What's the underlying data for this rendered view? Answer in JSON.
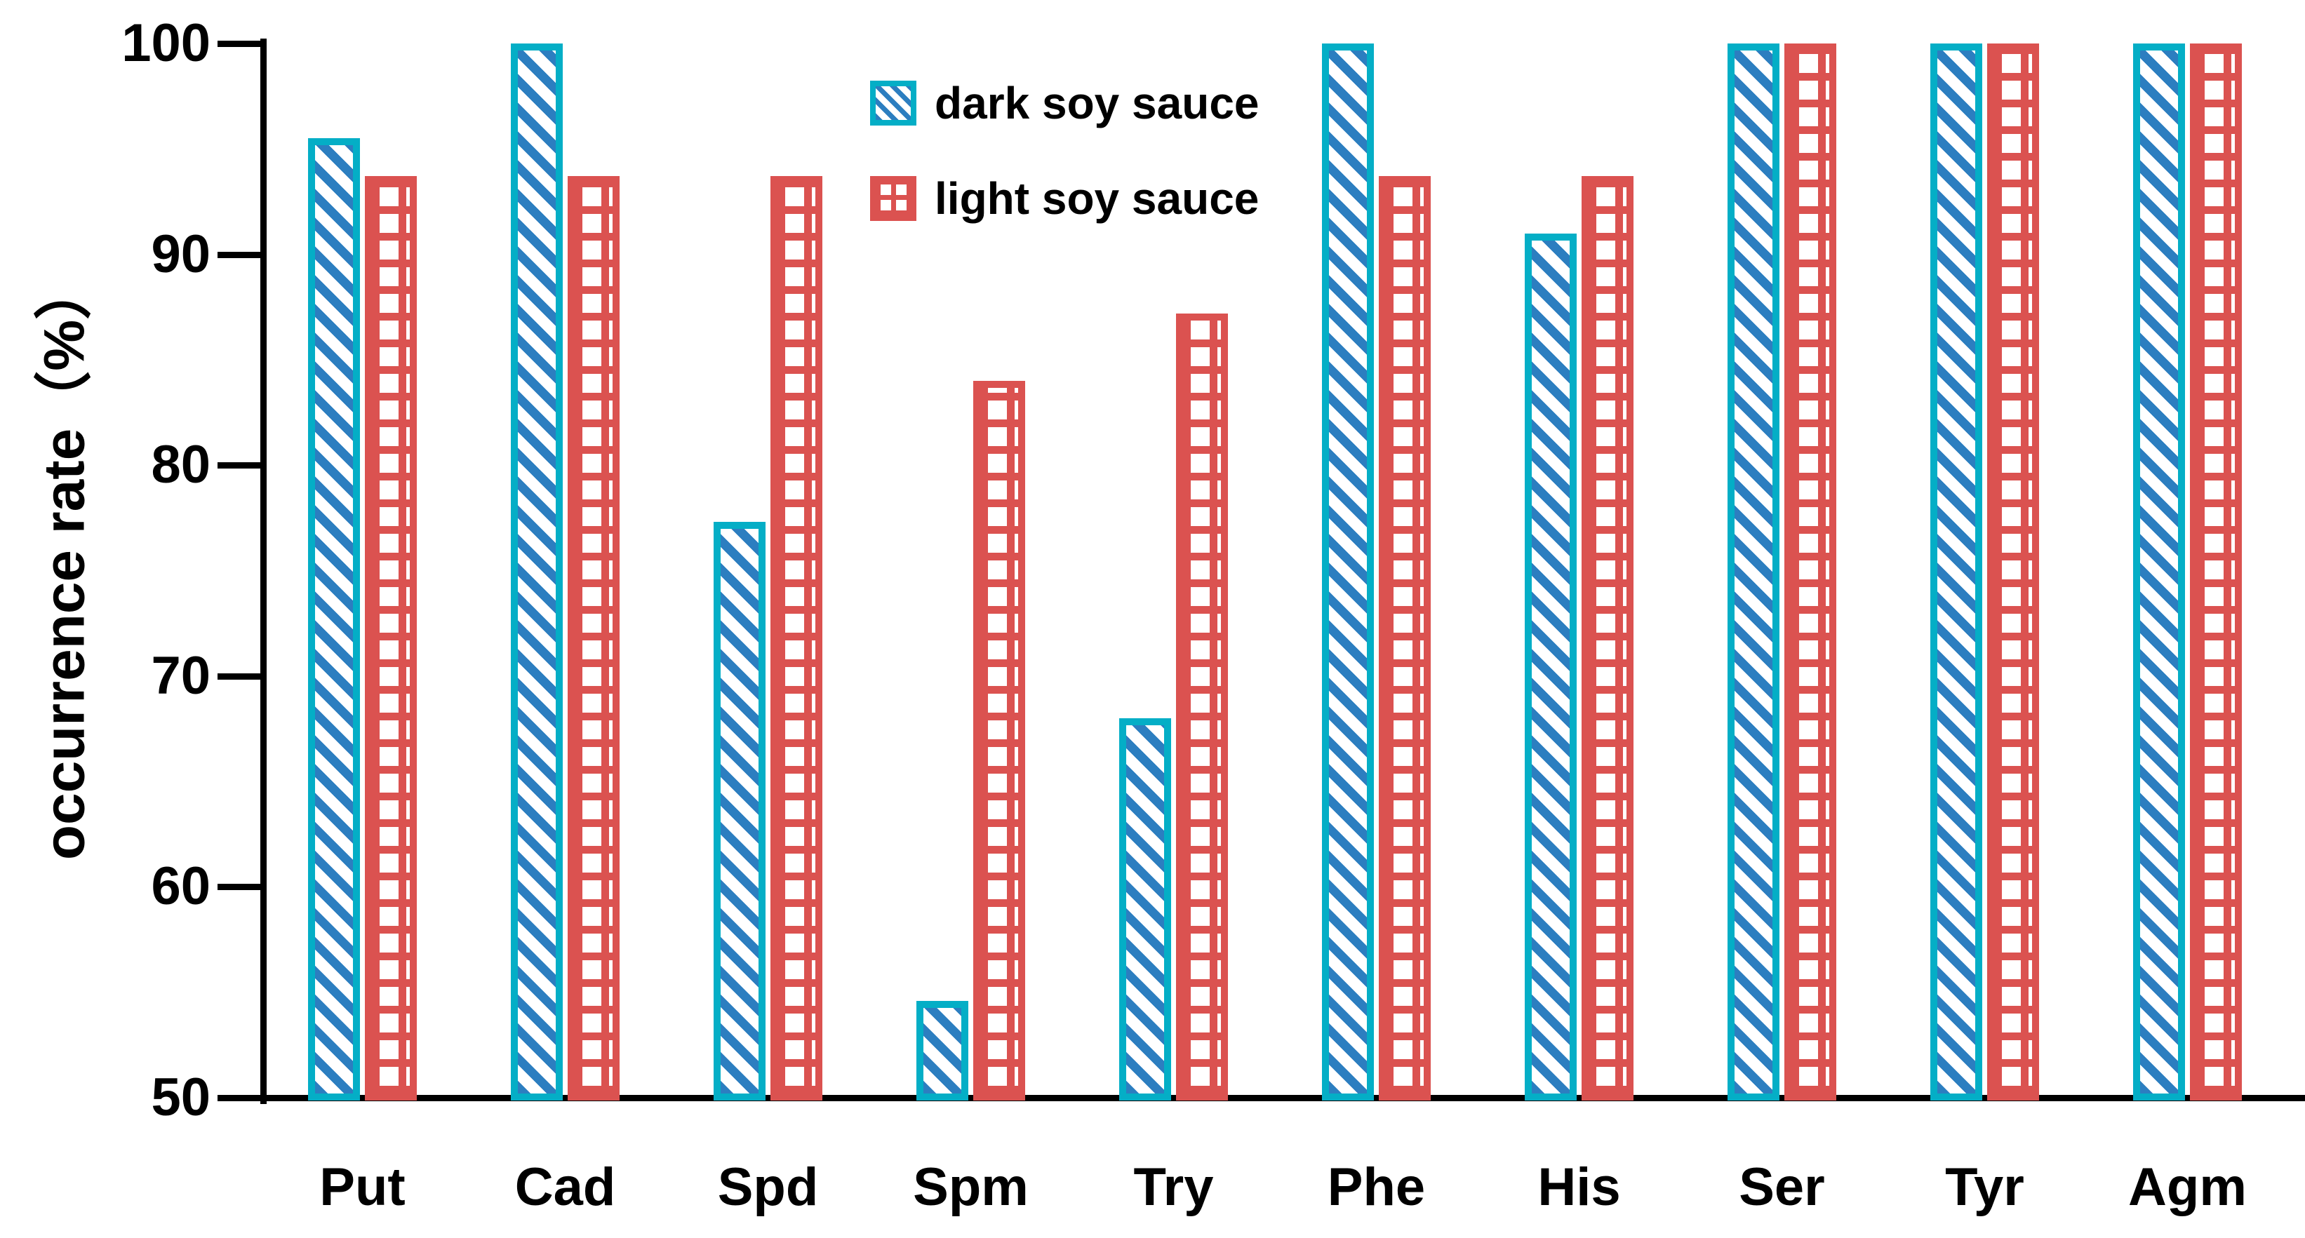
{
  "figure": {
    "background": "#ffffff",
    "text_color": "#000000"
  },
  "chart_data": {
    "type": "bar",
    "title": "",
    "xlabel": "",
    "ylabel": "occurrence rate（%）",
    "ylim": [
      50,
      100
    ],
    "yticks": [
      100,
      90,
      80,
      70,
      60,
      50
    ],
    "grid": false,
    "legend_position": "upper-center-left",
    "categories": [
      "Put",
      "Cad",
      "Spd",
      "Spm",
      "Try",
      "Phe",
      "His",
      "Ser",
      "Tyr",
      "Agm"
    ],
    "series": [
      {
        "name": "dark soy sauce",
        "pattern": "diagonal-hatch",
        "fill_color": "#2c7ec0",
        "border_color": "#04aec6",
        "values": [
          95.5,
          100,
          77.3,
          54.6,
          68.0,
          100,
          91.0,
          100,
          100,
          100
        ]
      },
      {
        "name": "light soy sauce",
        "pattern": "grid-hatch",
        "fill_color": "#db5250",
        "border_color": "#db5250",
        "values": [
          93.7,
          93.7,
          93.7,
          84.0,
          87.2,
          93.7,
          93.7,
          100,
          100,
          100
        ]
      }
    ]
  }
}
